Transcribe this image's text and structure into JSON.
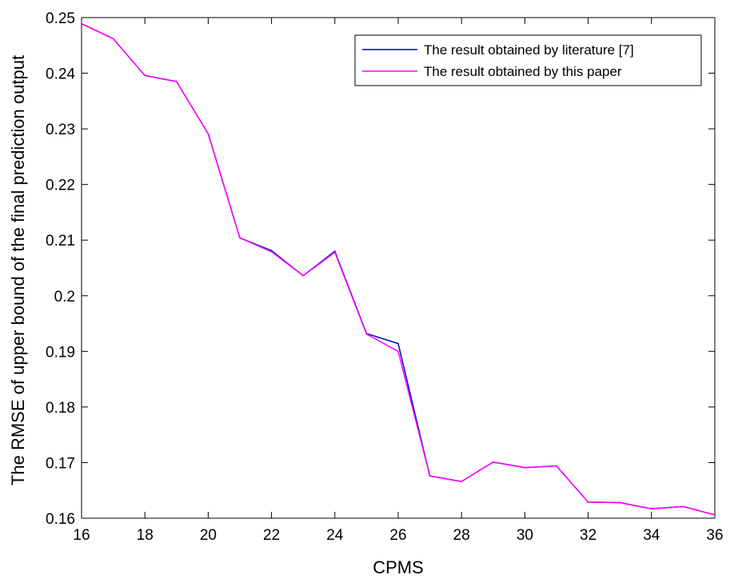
{
  "chart_data": {
    "type": "line",
    "title": "",
    "xlabel": "CPMS",
    "ylabel": "The RMSE of upper bound of the final prediction output",
    "xlim": [
      16,
      36
    ],
    "ylim": [
      0.16,
      0.25
    ],
    "xticks": [
      16,
      18,
      20,
      22,
      24,
      26,
      28,
      30,
      32,
      34,
      36
    ],
    "xtick_labels": [
      "16",
      "18",
      "20",
      "22",
      "24",
      "26",
      "28",
      "30",
      "32",
      "34",
      "36"
    ],
    "yticks": [
      0.16,
      0.17,
      0.18,
      0.19,
      0.2,
      0.21,
      0.22,
      0.23,
      0.24,
      0.25
    ],
    "ytick_labels": [
      "0.16",
      "0.17",
      "0.18",
      "0.19",
      "0.2",
      "0.21",
      "0.22",
      "0.23",
      "0.24",
      "0.25"
    ],
    "grid": false,
    "legend_position": "top-right",
    "x": [
      16,
      17,
      18,
      19,
      20,
      21,
      22,
      23,
      24,
      25,
      26,
      27,
      28,
      29,
      30,
      31,
      32,
      33,
      34,
      35,
      36
    ],
    "series": [
      {
        "name": "The result obtained by literature [7]",
        "color": "#0000cc",
        "values": [
          0.2489,
          0.2462,
          0.2396,
          0.2385,
          0.2291,
          0.2104,
          0.2081,
          0.2036,
          0.208,
          0.1932,
          0.1914,
          0.1676,
          0.1666,
          0.1701,
          0.1691,
          0.1694,
          0.1629,
          0.1628,
          0.1617,
          0.1621,
          0.1606
        ]
      },
      {
        "name": "The result obtained by this paper",
        "color": "#ff00ff",
        "values": [
          0.2489,
          0.2462,
          0.2396,
          0.2385,
          0.2291,
          0.2104,
          0.2079,
          0.2036,
          0.2078,
          0.1931,
          0.19,
          0.1676,
          0.1666,
          0.1701,
          0.1691,
          0.1694,
          0.1629,
          0.1628,
          0.1617,
          0.1621,
          0.1606
        ]
      }
    ]
  }
}
